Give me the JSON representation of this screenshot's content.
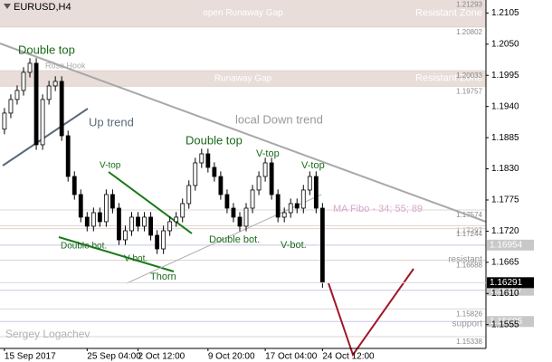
{
  "chart_data": {
    "type": "candlestick",
    "title": "EURUSD,H4",
    "author": "Sergey Logachev",
    "xlim": [
      -0.7,
      75.7
    ],
    "xticks": [
      {
        "value": 0,
        "label": "15 Sep 2017"
      },
      {
        "value": 13,
        "label": "25 Sep 04:00"
      },
      {
        "value": 21,
        "label": "2 Oct 12:00"
      },
      {
        "value": 32,
        "label": "9 Oct 20:00"
      },
      {
        "value": 41,
        "label": "17 Oct 04:00"
      },
      {
        "value": 50,
        "label": "24 Oct 12:00"
      }
    ],
    "ylim": [
      1.1513,
      1.2128
    ],
    "yticks": [
      1.2105,
      {
        "value": 1.205,
        "label": "1.2050"
      },
      1.1995,
      {
        "value": 1.194,
        "label": "1.1940"
      },
      1.1885,
      {
        "value": 1.183,
        "label": "1.1830"
      },
      1.1775,
      {
        "value": 1.172,
        "label": "1.1720"
      },
      1.1665,
      {
        "value": 1.161,
        "label": "1.1610"
      },
      1.1555
    ],
    "colors": {
      "up": "#ffffff",
      "down": "#000000",
      "outline": "#000000"
    },
    "open": [
      1.19,
      1.19284,
      1.19524,
      1.19683,
      1.20003,
      1.20163,
      1.18725,
      1.19524,
      1.19763,
      1.19843,
      1.18884,
      1.18165,
      1.17846,
      1.17447,
      1.17287,
      1.17526,
      1.17367,
      1.17846,
      1.17606,
      1.17047,
      1.17207,
      1.17447,
      1.17287,
      1.17447,
      1.17127,
      1.16887,
      1.17207,
      1.17367,
      1.17447,
      1.17686,
      1.18006,
      1.18405,
      1.18565,
      1.18325,
      1.18165,
      1.17846,
      1.17606,
      1.17447,
      1.17287,
      1.17606,
      1.17926,
      1.18165,
      1.18405,
      1.17846,
      1.17447,
      1.17526,
      1.17686,
      1.17606,
      1.17926,
      1.18165,
      1.17606
    ],
    "high": [
      1.19374,
      1.19614,
      1.19773,
      1.20093,
      1.20253,
      1.20253,
      1.19614,
      1.19853,
      1.19933,
      1.19933,
      1.18974,
      1.18255,
      1.17936,
      1.17537,
      1.17616,
      1.17616,
      1.17936,
      1.17936,
      1.17696,
      1.17297,
      1.17537,
      1.17537,
      1.17537,
      1.17537,
      1.17217,
      1.17297,
      1.17457,
      1.17537,
      1.17776,
      1.18096,
      1.18495,
      1.18655,
      1.18655,
      1.18415,
      1.18255,
      1.17936,
      1.17696,
      1.17537,
      1.17696,
      1.18016,
      1.18255,
      1.18495,
      1.18495,
      1.17936,
      1.17616,
      1.17776,
      1.17776,
      1.18016,
      1.18255,
      1.18255,
      1.17696
    ],
    "low": [
      1.1891,
      1.19194,
      1.19434,
      1.19593,
      1.19913,
      1.18635,
      1.18635,
      1.19434,
      1.19673,
      1.18794,
      1.18075,
      1.17756,
      1.17357,
      1.17197,
      1.17197,
      1.17277,
      1.17277,
      1.17516,
      1.16957,
      1.16957,
      1.17117,
      1.17197,
      1.17197,
      1.17037,
      1.16797,
      1.16797,
      1.17117,
      1.17277,
      1.17357,
      1.17596,
      1.17916,
      1.18315,
      1.18235,
      1.18075,
      1.17756,
      1.17516,
      1.17357,
      1.17197,
      1.17197,
      1.17516,
      1.17836,
      1.18075,
      1.17756,
      1.17357,
      1.17357,
      1.17436,
      1.17516,
      1.17516,
      1.17836,
      1.17516,
      1.16201
    ],
    "close": [
      1.19284,
      1.19524,
      1.19683,
      1.20003,
      1.20163,
      1.18725,
      1.19524,
      1.19763,
      1.19843,
      1.18884,
      1.18165,
      1.17846,
      1.17447,
      1.17287,
      1.17526,
      1.17367,
      1.17846,
      1.17606,
      1.17047,
      1.17207,
      1.17447,
      1.17287,
      1.17447,
      1.17127,
      1.16887,
      1.17207,
      1.17367,
      1.17447,
      1.17686,
      1.18006,
      1.18405,
      1.18565,
      1.18325,
      1.18165,
      1.17846,
      1.17606,
      1.17447,
      1.17287,
      1.17606,
      1.17926,
      1.18165,
      1.18405,
      1.17846,
      1.17447,
      1.17526,
      1.17686,
      1.17606,
      1.17926,
      1.18165,
      1.17606,
      1.16291
    ],
    "current_price": 1.16291,
    "zones": [
      {
        "from": 1.20802,
        "to": 1.21293,
        "name": "open Runaway Gap",
        "kind": "Resistant Zone"
      },
      {
        "from": 1.19757,
        "to": 1.20033,
        "name": "Runaway Gap",
        "kind": "Resistant Zone"
      }
    ],
    "levels": [
      {
        "value": 1.21293,
        "boxed": false
      },
      {
        "value": 1.20802,
        "boxed": false
      },
      {
        "value": 1.20033,
        "boxed": false
      },
      {
        "value": 1.19757,
        "boxed": false
      },
      {
        "value": 1.17574,
        "boxed": false
      },
      {
        "value": 1.17297,
        "boxed": false
      },
      {
        "value": 1.17244,
        "boxed": false
      },
      {
        "value": 1.16954,
        "boxed": true
      },
      {
        "value": 1.16688,
        "boxed": false
      },
      {
        "value": 1.16157,
        "boxed": true
      },
      {
        "value": 1.15826,
        "boxed": false
      },
      {
        "value": 1.15605,
        "boxed": true
      },
      {
        "value": 1.15338,
        "boxed": false
      }
    ],
    "annotations": [
      "Double top",
      "Rose Hook",
      "Up trend",
      "local Down trend",
      "Double top",
      "V-top",
      "V-top",
      "V-top",
      "Double bot.",
      "V-bot.",
      "Thorn",
      "Double bot.",
      "V-bot.",
      "MA Fibo - 34; 55; 89",
      "resistant",
      "support"
    ]
  }
}
